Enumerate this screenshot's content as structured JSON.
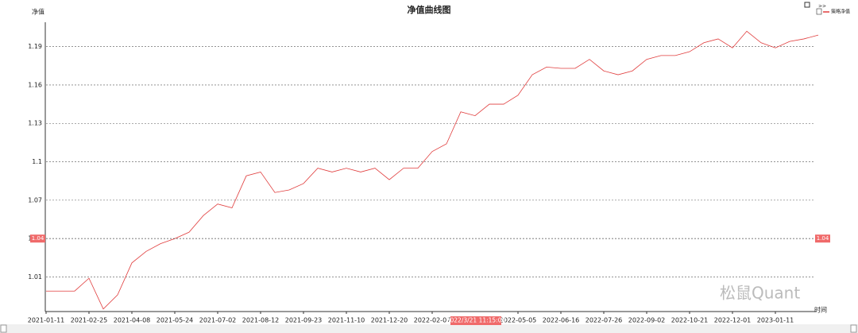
{
  "chart_data": {
    "type": "line",
    "title": "净值曲线图",
    "y_label": "净值",
    "x_label": "时间",
    "categories": [
      "2021-01-11",
      null,
      null,
      "2021-02-25",
      null,
      null,
      "2021-04-08",
      null,
      null,
      "2021-05-24",
      null,
      null,
      "2021-07-02",
      null,
      null,
      "2021-08-12",
      null,
      null,
      "2021-09-23",
      null,
      null,
      "2021-11-10",
      null,
      null,
      "2021-12-20",
      null,
      null,
      "2022-02-07",
      null,
      null,
      null,
      null,
      null,
      "2022-05-05",
      null,
      null,
      "2022-06-16",
      null,
      null,
      "2022-07-26",
      null,
      null,
      "2022-09-02",
      null,
      null,
      "2022-10-21",
      null,
      null,
      "2022-12-01",
      null,
      null,
      "2023-01-11",
      null,
      null,
      null
    ],
    "series": [
      {
        "name": "策略净值",
        "color": "#e03c3c",
        "values": [
          0.999,
          0.999,
          0.999,
          1.009,
          0.985,
          0.996,
          1.021,
          1.03,
          1.036,
          1.04,
          1.045,
          1.058,
          1.067,
          1.064,
          1.089,
          1.092,
          1.076,
          1.078,
          1.083,
          1.095,
          1.092,
          1.095,
          1.092,
          1.095,
          1.086,
          1.095,
          1.095,
          1.108,
          1.114,
          1.139,
          1.136,
          1.145,
          1.145,
          1.152,
          1.168,
          1.174,
          1.173,
          1.173,
          1.18,
          1.171,
          1.168,
          1.171,
          1.18,
          1.183,
          1.183,
          1.186,
          1.193,
          1.196,
          1.189,
          1.202,
          1.193,
          1.189,
          1.194,
          1.196,
          1.199
        ]
      }
    ],
    "ylim": [
      0.983,
      1.209
    ],
    "yticks": [
      1.01,
      1.04,
      1.07,
      1.1,
      1.13,
      1.16,
      1.19
    ],
    "grid": true,
    "legend": "top-right",
    "crosshair": {
      "y": 1.04,
      "x_label": "2022/3/21 11:15:00"
    },
    "watermark": "松鼠Quant"
  }
}
